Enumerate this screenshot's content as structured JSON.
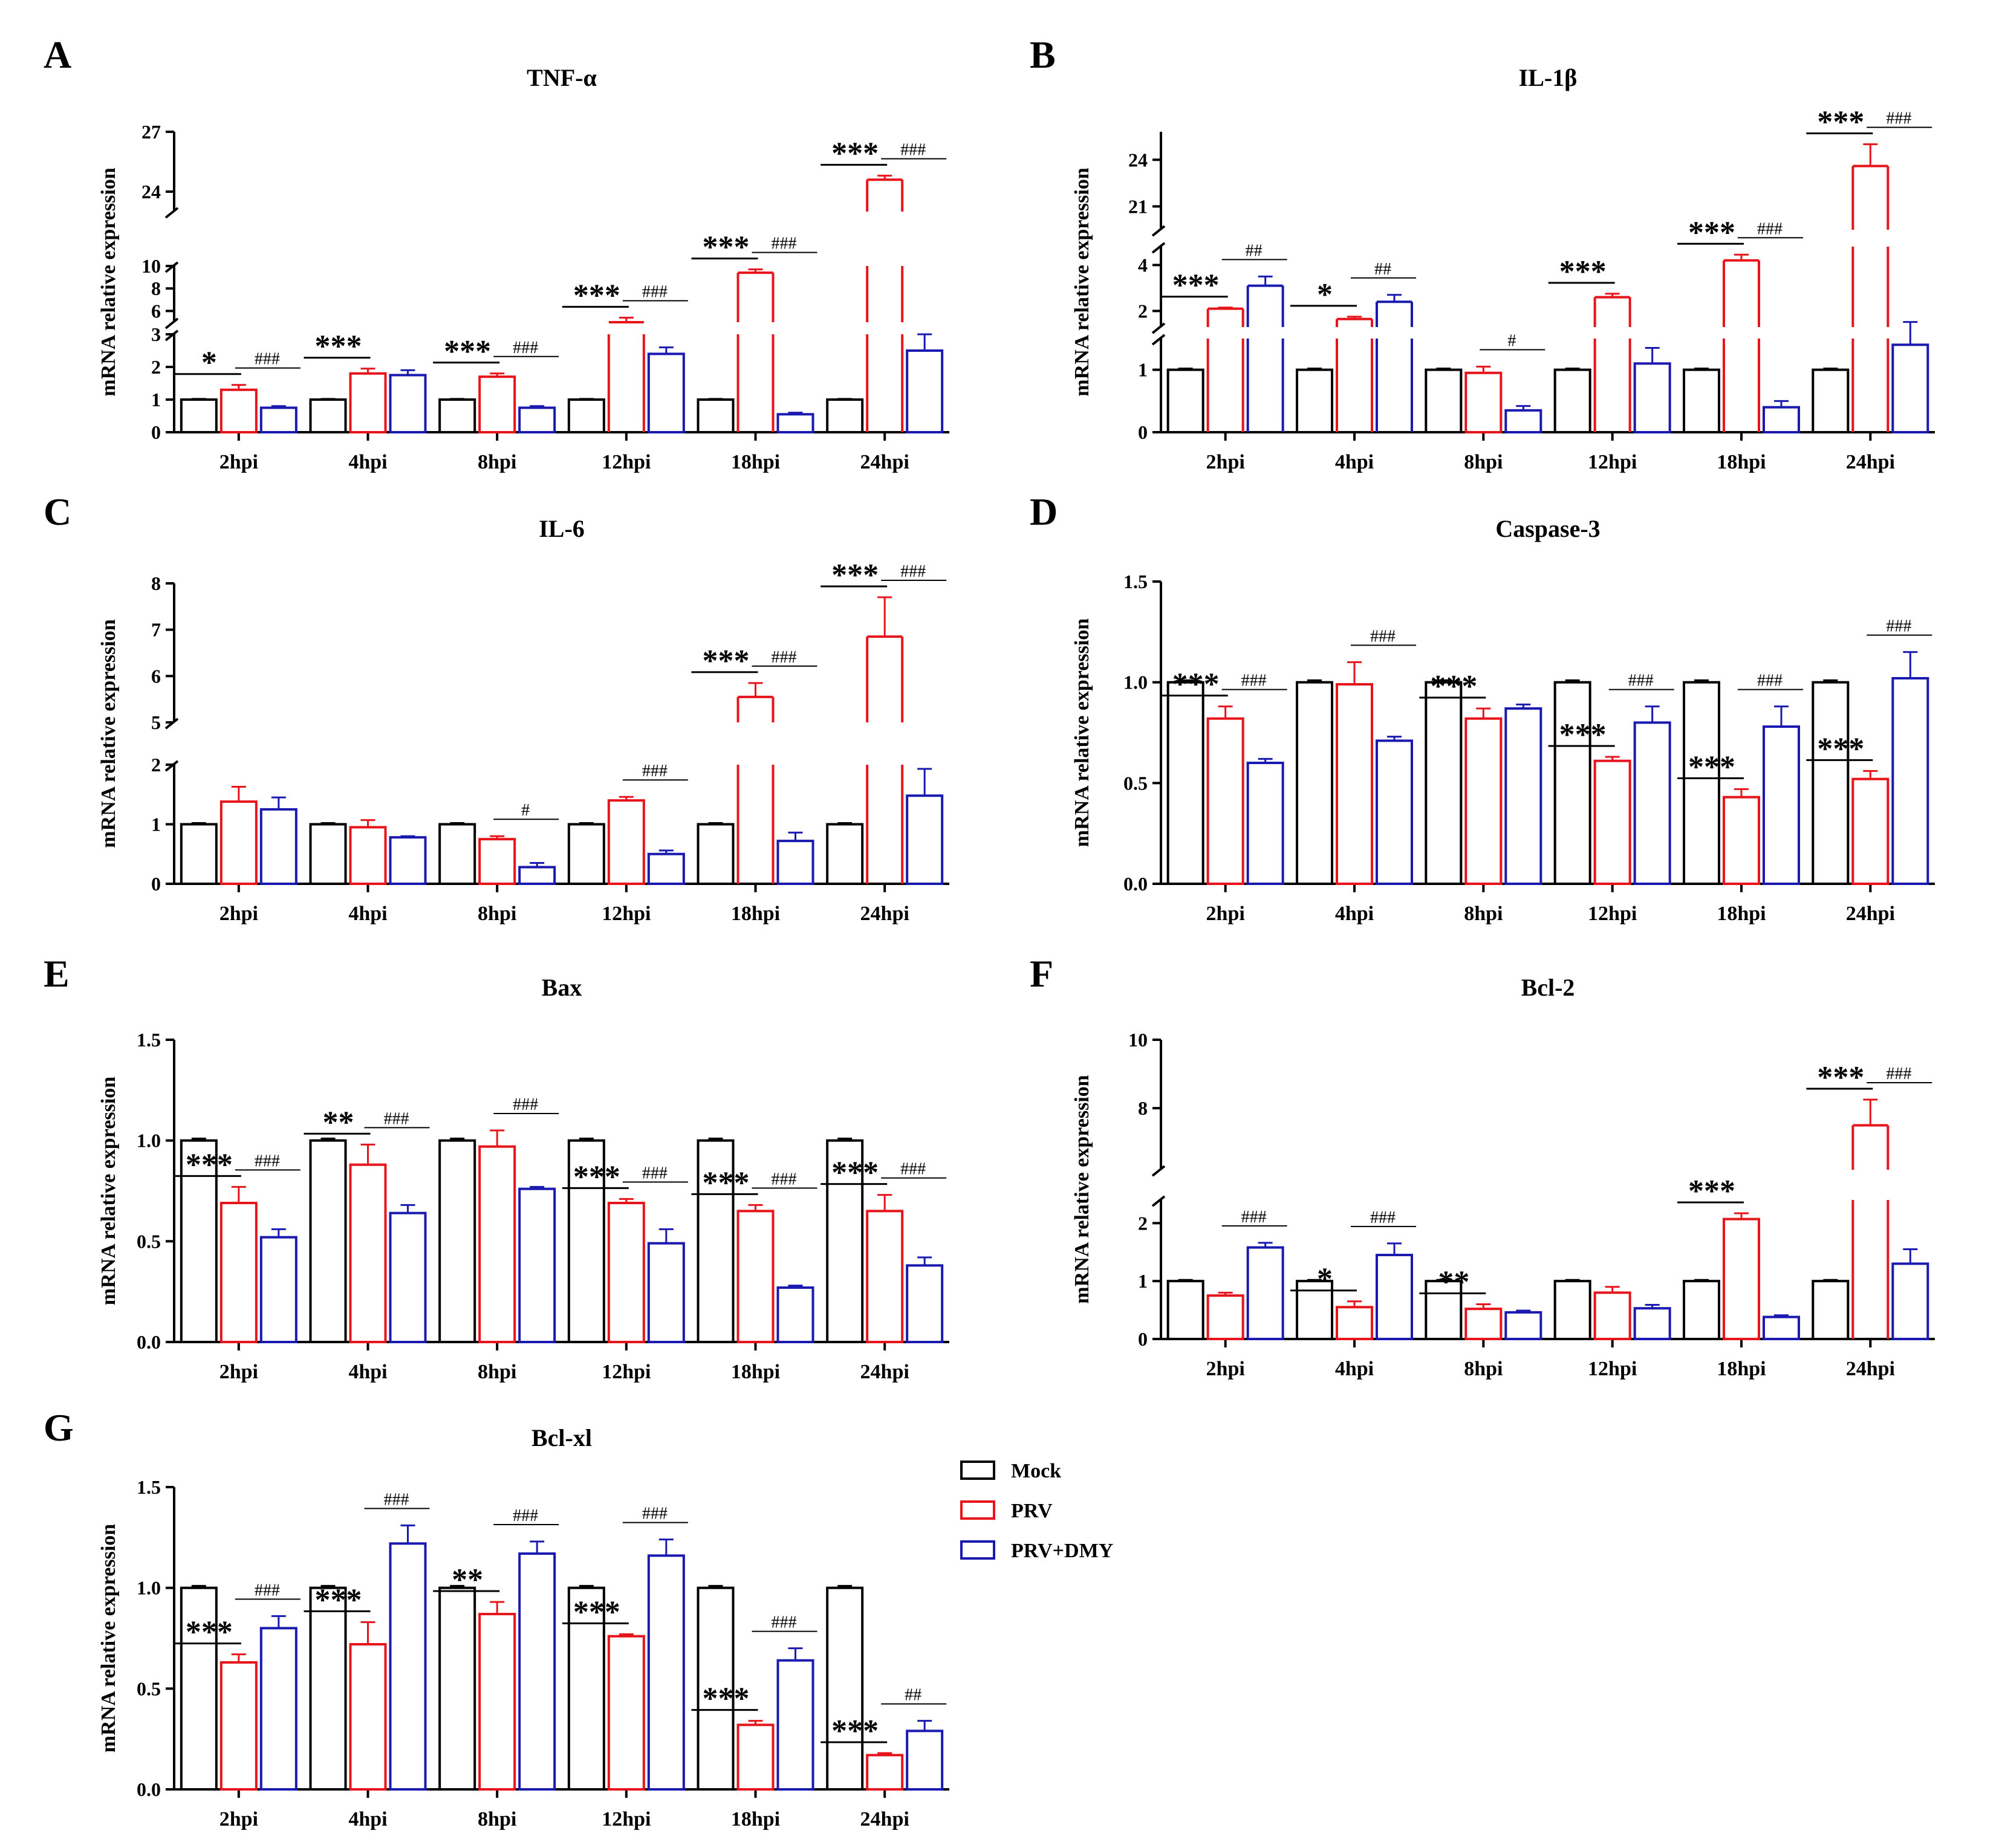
{
  "colors": {
    "Mock": "#000000",
    "PRV": "#e8141b",
    "PRV+DMY": "#1a1ab0",
    "axis": "#000000"
  },
  "legend": {
    "placement": "right-of-panel-G",
    "entries": [
      "Mock",
      "PRV",
      "PRV+DMY"
    ]
  },
  "chart_data": [
    {
      "panel": "A",
      "type": "bar",
      "title": "TNF-α",
      "ylabel": "mRNA relative expression",
      "xlabel": "",
      "categories": [
        "2hpi",
        "4hpi",
        "8hpi",
        "12hpi",
        "18hpi",
        "24hpi"
      ],
      "axis_break": true,
      "segments": [
        [
          0,
          3
        ],
        [
          5,
          10
        ],
        [
          23,
          27
        ]
      ],
      "yticks": [
        [
          0,
          1,
          2,
          3
        ],
        [
          6,
          8,
          10
        ],
        [
          24,
          27
        ]
      ],
      "series": [
        {
          "name": "Mock",
          "values": [
            1,
            1,
            1,
            1,
            1,
            1
          ],
          "errors": [
            0.02,
            0.02,
            0.02,
            0.02,
            0.02,
            0.02
          ]
        },
        {
          "name": "PRV",
          "values": [
            1.3,
            1.8,
            1.7,
            5.0,
            9.4,
            24.6
          ],
          "errors": [
            0.15,
            0.15,
            0.1,
            0.4,
            0.3,
            0.2
          ]
        },
        {
          "name": "PRV+DMY",
          "values": [
            0.75,
            1.75,
            0.75,
            2.4,
            0.55,
            2.5
          ],
          "errors": [
            0.05,
            0.15,
            0.05,
            0.2,
            0.05,
            0.5
          ]
        }
      ],
      "annotations": [
        {
          "category": "2hpi",
          "star": "*",
          "hash": "###"
        },
        {
          "category": "4hpi",
          "star": "***",
          "hash": ""
        },
        {
          "category": "8hpi",
          "star": "***",
          "hash": "###"
        },
        {
          "category": "12hpi",
          "star": "***",
          "hash": "###"
        },
        {
          "category": "18hpi",
          "star": "***",
          "hash": "###"
        },
        {
          "category": "24hpi",
          "star": "***",
          "hash": "###"
        }
      ]
    },
    {
      "panel": "B",
      "type": "bar",
      "title": "IL-1β",
      "ylabel": "mRNA relative expression",
      "xlabel": "",
      "categories": [
        "2hpi",
        "4hpi",
        "8hpi",
        "12hpi",
        "18hpi",
        "24hpi"
      ],
      "axis_break": true,
      "segments": [
        [
          0,
          1.5
        ],
        [
          1.3,
          4.8
        ],
        [
          19.5,
          25.8
        ]
      ],
      "yticks": [
        [
          0,
          1
        ],
        [
          2,
          4
        ],
        [
          21,
          24
        ]
      ],
      "series": [
        {
          "name": "Mock",
          "values": [
            1,
            1,
            1,
            1,
            1,
            1
          ],
          "errors": [
            0.02,
            0.02,
            0.02,
            0.02,
            0.02,
            0.02
          ]
        },
        {
          "name": "PRV",
          "values": [
            2.1,
            1.65,
            0.95,
            2.6,
            4.2,
            23.6
          ],
          "errors": [
            0.05,
            0.1,
            0.1,
            0.15,
            0.25,
            1.4
          ]
        },
        {
          "name": "PRV+DMY",
          "values": [
            3.1,
            2.4,
            0.35,
            1.1,
            0.4,
            1.4
          ],
          "errors": [
            0.4,
            0.3,
            0.07,
            0.25,
            0.1,
            0.12
          ]
        }
      ],
      "annotations": [
        {
          "category": "2hpi",
          "star": "***",
          "hash": "##"
        },
        {
          "category": "4hpi",
          "star": "*",
          "hash": "##"
        },
        {
          "category": "8hpi",
          "star": "",
          "hash": "#"
        },
        {
          "category": "12hpi",
          "star": "***",
          "hash": ""
        },
        {
          "category": "18hpi",
          "star": "***",
          "hash": "###"
        },
        {
          "category": "24hpi",
          "star": "***",
          "hash": "###"
        }
      ]
    },
    {
      "panel": "C",
      "type": "bar",
      "title": "IL-6",
      "ylabel": "mRNA relative expression",
      "xlabel": "",
      "categories": [
        "2hpi",
        "4hpi",
        "8hpi",
        "12hpi",
        "18hpi",
        "24hpi"
      ],
      "axis_break": true,
      "segments": [
        [
          0,
          2
        ],
        [
          5,
          8
        ]
      ],
      "yticks": [
        [
          0,
          1,
          2
        ],
        [
          5,
          6,
          7,
          8
        ]
      ],
      "series": [
        {
          "name": "Mock",
          "values": [
            1,
            1,
            1,
            1,
            1,
            1
          ],
          "errors": [
            0.02,
            0.02,
            0.02,
            0.02,
            0.02,
            0.02
          ]
        },
        {
          "name": "PRV",
          "values": [
            1.38,
            0.95,
            0.75,
            1.4,
            5.55,
            6.85
          ],
          "errors": [
            0.25,
            0.12,
            0.05,
            0.06,
            0.3,
            0.85
          ]
        },
        {
          "name": "PRV+DMY",
          "values": [
            1.25,
            0.78,
            0.28,
            0.5,
            0.72,
            1.48
          ],
          "errors": [
            0.2,
            0.02,
            0.07,
            0.06,
            0.14,
            0.45
          ]
        }
      ],
      "annotations": [
        {
          "category": "2hpi",
          "star": "",
          "hash": ""
        },
        {
          "category": "4hpi",
          "star": "",
          "hash": ""
        },
        {
          "category": "8hpi",
          "star": "",
          "hash": "#"
        },
        {
          "category": "12hpi",
          "star": "",
          "hash": "###"
        },
        {
          "category": "18hpi",
          "star": "***",
          "hash": "###"
        },
        {
          "category": "24hpi",
          "star": "***",
          "hash": "###"
        }
      ]
    },
    {
      "panel": "D",
      "type": "bar",
      "title": "Caspase-3",
      "ylabel": "mRNA relative expression",
      "xlabel": "",
      "categories": [
        "2hpi",
        "4hpi",
        "8hpi",
        "12hpi",
        "18hpi",
        "24hpi"
      ],
      "axis_break": false,
      "segments": [
        [
          0,
          1.5
        ]
      ],
      "yticks": [
        [
          "0.0",
          "0.5",
          "1.0",
          "1.5"
        ]
      ],
      "series": [
        {
          "name": "Mock",
          "values": [
            1,
            1,
            1,
            1,
            1,
            1
          ],
          "errors": [
            0.01,
            0.01,
            0.01,
            0.01,
            0.01,
            0.01
          ]
        },
        {
          "name": "PRV",
          "values": [
            0.82,
            0.99,
            0.82,
            0.61,
            0.43,
            0.52
          ],
          "errors": [
            0.06,
            0.11,
            0.05,
            0.02,
            0.04,
            0.04
          ]
        },
        {
          "name": "PRV+DMY",
          "values": [
            0.6,
            0.71,
            0.87,
            0.8,
            0.78,
            1.02
          ],
          "errors": [
            0.02,
            0.02,
            0.02,
            0.08,
            0.1,
            0.13
          ]
        }
      ],
      "annotations": [
        {
          "category": "2hpi",
          "star": "***",
          "hash": "###"
        },
        {
          "category": "4hpi",
          "star": "",
          "hash": "###"
        },
        {
          "category": "8hpi",
          "star": "***",
          "hash": ""
        },
        {
          "category": "12hpi",
          "star": "***",
          "hash": "###"
        },
        {
          "category": "18hpi",
          "star": "***",
          "hash": "###"
        },
        {
          "category": "24hpi",
          "star": "***",
          "hash": "###"
        }
      ]
    },
    {
      "panel": "E",
      "type": "bar",
      "title": "Bax",
      "ylabel": "mRNA relative expression",
      "xlabel": "",
      "categories": [
        "2hpi",
        "4hpi",
        "8hpi",
        "12hpi",
        "18hpi",
        "24hpi"
      ],
      "axis_break": false,
      "segments": [
        [
          0,
          1.5
        ]
      ],
      "yticks": [
        [
          "0.0",
          "0.5",
          "1.0",
          "1.5"
        ]
      ],
      "series": [
        {
          "name": "Mock",
          "values": [
            1,
            1,
            1,
            1,
            1,
            1
          ],
          "errors": [
            0.01,
            0.01,
            0.01,
            0.01,
            0.01,
            0.01
          ]
        },
        {
          "name": "PRV",
          "values": [
            0.69,
            0.88,
            0.97,
            0.69,
            0.65,
            0.65
          ],
          "errors": [
            0.08,
            0.1,
            0.08,
            0.02,
            0.03,
            0.08
          ]
        },
        {
          "name": "PRV+DMY",
          "values": [
            0.52,
            0.64,
            0.76,
            0.49,
            0.27,
            0.38
          ],
          "errors": [
            0.04,
            0.04,
            0.01,
            0.07,
            0.01,
            0.04
          ]
        }
      ],
      "annotations": [
        {
          "category": "2hpi",
          "star": "***",
          "hash": "###"
        },
        {
          "category": "4hpi",
          "star": "**",
          "hash": "###"
        },
        {
          "category": "8hpi",
          "star": "",
          "hash": "###"
        },
        {
          "category": "12hpi",
          "star": "***",
          "hash": "###"
        },
        {
          "category": "18hpi",
          "star": "***",
          "hash": "###"
        },
        {
          "category": "24hpi",
          "star": "***",
          "hash": "###"
        }
      ]
    },
    {
      "panel": "F",
      "type": "bar",
      "title": "Bcl-2",
      "ylabel": "mRNA relative expression",
      "xlabel": "",
      "categories": [
        "2hpi",
        "4hpi",
        "8hpi",
        "12hpi",
        "18hpi",
        "24hpi"
      ],
      "axis_break": true,
      "segments": [
        [
          0,
          2.4
        ],
        [
          6.2,
          10
        ]
      ],
      "yticks": [
        [
          0,
          1,
          2
        ],
        [
          8,
          10
        ]
      ],
      "series": [
        {
          "name": "Mock",
          "values": [
            1,
            1,
            1,
            1,
            1,
            1
          ],
          "errors": [
            0.02,
            0.02,
            0.02,
            0.02,
            0.02,
            0.02
          ]
        },
        {
          "name": "PRV",
          "values": [
            0.75,
            0.55,
            0.52,
            0.8,
            2.07,
            7.5
          ],
          "errors": [
            0.05,
            0.1,
            0.08,
            0.1,
            0.1,
            0.75
          ]
        },
        {
          "name": "PRV+DMY",
          "values": [
            1.58,
            1.45,
            0.46,
            0.53,
            0.38,
            1.3
          ],
          "errors": [
            0.08,
            0.2,
            0.03,
            0.06,
            0.03,
            0.25
          ]
        }
      ],
      "annotations": [
        {
          "category": "2hpi",
          "star": "",
          "hash": "###"
        },
        {
          "category": "4hpi",
          "star": "*",
          "hash": "###"
        },
        {
          "category": "8hpi",
          "star": "**",
          "hash": ""
        },
        {
          "category": "12hpi",
          "star": "",
          "hash": ""
        },
        {
          "category": "18hpi",
          "star": "***",
          "hash": ""
        },
        {
          "category": "24hpi",
          "star": "***",
          "hash": "###"
        }
      ]
    },
    {
      "panel": "G",
      "type": "bar",
      "title": "Bcl-xl",
      "ylabel": "mRNA relative expression",
      "xlabel": "",
      "categories": [
        "2hpi",
        "4hpi",
        "8hpi",
        "12hpi",
        "18hpi",
        "24hpi"
      ],
      "axis_break": false,
      "segments": [
        [
          0,
          1.5
        ]
      ],
      "yticks": [
        [
          "0.0",
          "0.5",
          "1.0",
          "1.5"
        ]
      ],
      "series": [
        {
          "name": "Mock",
          "values": [
            1,
            1,
            1,
            1,
            1,
            1
          ],
          "errors": [
            0.01,
            0.01,
            0.01,
            0.01,
            0.01,
            0.01
          ]
        },
        {
          "name": "PRV",
          "values": [
            0.63,
            0.72,
            0.87,
            0.76,
            0.32,
            0.17
          ],
          "errors": [
            0.04,
            0.11,
            0.06,
            0.01,
            0.02,
            0.01
          ]
        },
        {
          "name": "PRV+DMY",
          "values": [
            0.8,
            1.22,
            1.17,
            1.16,
            0.64,
            0.29
          ],
          "errors": [
            0.06,
            0.09,
            0.06,
            0.08,
            0.06,
            0.05
          ]
        }
      ],
      "annotations": [
        {
          "category": "2hpi",
          "star": "***",
          "hash": "###"
        },
        {
          "category": "4hpi",
          "star": "***",
          "hash": "###"
        },
        {
          "category": "8hpi",
          "star": "**",
          "hash": "###"
        },
        {
          "category": "12hpi",
          "star": "***",
          "hash": "###"
        },
        {
          "category": "18hpi",
          "star": "***",
          "hash": "###"
        },
        {
          "category": "24hpi",
          "star": "***",
          "hash": "##"
        }
      ]
    }
  ]
}
